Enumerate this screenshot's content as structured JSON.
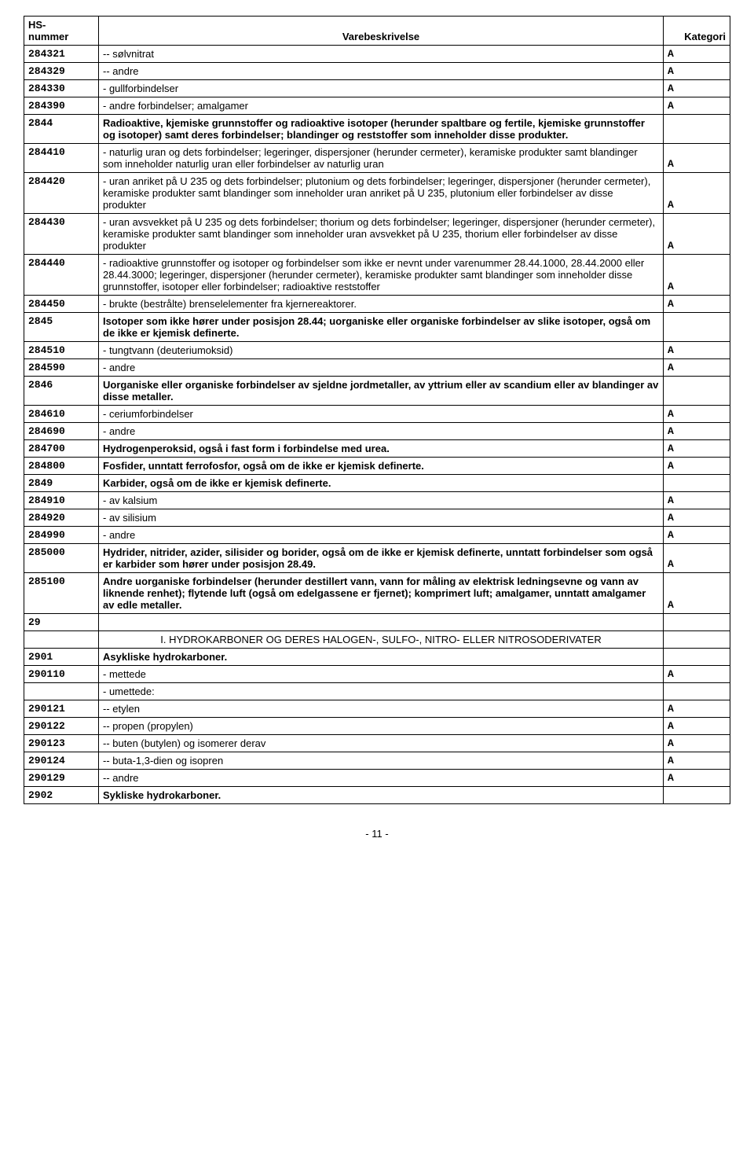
{
  "header": {
    "col1_line1": "HS-",
    "col1_line2": "nummer",
    "col2": "Varebeskrivelse",
    "col3": "Kategori"
  },
  "rows": [
    {
      "code": "284321",
      "desc": "-- sølvnitrat",
      "cat": "A",
      "bold": false
    },
    {
      "code": "284329",
      "desc": "-- andre",
      "cat": "A",
      "bold": false
    },
    {
      "code": "284330",
      "desc": "- gullforbindelser",
      "cat": "A",
      "bold": false
    },
    {
      "code": "284390",
      "desc": "- andre forbindelser; amalgamer",
      "cat": "A",
      "bold": false
    },
    {
      "code": "2844",
      "desc": "Radioaktive, kjemiske grunnstoffer og radioaktive isotoper (herunder spaltbare og fertile, kjemiske grunnstoffer og isotoper) samt deres forbindelser; blandinger og reststoffer som inneholder disse produkter.",
      "cat": "",
      "bold": true
    },
    {
      "code": "284410",
      "desc": "- naturlig uran og dets forbindelser; legeringer, dispersjoner (herunder cermeter), keramiske produkter samt blandinger som inneholder naturlig uran eller forbindelser av naturlig uran",
      "cat": "A",
      "bold": false
    },
    {
      "code": "284420",
      "desc": "- uran anriket på U 235 og dets forbindelser; plutonium og dets forbindelser; legeringer, dispersjoner (herunder cermeter), keramiske produkter samt blandinger som inneholder uran anriket på U 235, plutonium eller forbindelser av disse produkter",
      "cat": "A",
      "bold": false
    },
    {
      "code": "284430",
      "desc": "- uran avsvekket på U 235 og dets forbindelser; thorium og dets forbindelser; legeringer, dispersjoner (herunder cermeter), keramiske produkter samt blandinger som inneholder uran avsvekket på U 235, thorium eller forbindelser av disse produkter",
      "cat": "A",
      "bold": false
    },
    {
      "code": "284440",
      "desc": "- radioaktive grunnstoffer og isotoper og forbindelser som ikke er nevnt under varenummer 28.44.1000, 28.44.2000 eller 28.44.3000; legeringer, dispersjoner (herunder cermeter), keramiske produkter samt blandinger som inneholder disse grunnstoffer, isotoper eller forbindelser; radioaktive reststoffer",
      "cat": "A",
      "bold": false
    },
    {
      "code": "284450",
      "desc": "- brukte (bestrålte) brenselelementer fra kjernereaktorer.",
      "cat": "A",
      "bold": false
    },
    {
      "code": "2845",
      "desc": "Isotoper som ikke hører under posisjon 28.44; uorganiske eller organiske forbindelser av slike isotoper, også om de ikke er kjemisk definerte.",
      "cat": "",
      "bold": true
    },
    {
      "code": "284510",
      "desc": "- tungtvann (deuteriumoksid)",
      "cat": "A",
      "bold": false
    },
    {
      "code": "284590",
      "desc": "- andre",
      "cat": "A",
      "bold": false
    },
    {
      "code": "2846",
      "desc": "Uorganiske eller organiske forbindelser av sjeldne jordmetaller, av yttrium eller av scandium eller av blandinger av disse metaller.",
      "cat": "",
      "bold": true
    },
    {
      "code": "284610",
      "desc": "- ceriumforbindelser",
      "cat": "A",
      "bold": false
    },
    {
      "code": "284690",
      "desc": "- andre",
      "cat": "A",
      "bold": false
    },
    {
      "code": "284700",
      "desc": "Hydrogenperoksid, også i fast form i forbindelse med urea.",
      "cat": "A",
      "bold": true
    },
    {
      "code": "284800",
      "desc": "Fosfider, unntatt ferrofosfor, også om de ikke er kjemisk definerte.",
      "cat": "A",
      "bold": true
    },
    {
      "code": "2849",
      "desc": "Karbider, også om de ikke er kjemisk definerte.",
      "cat": "",
      "bold": true
    },
    {
      "code": "284910",
      "desc": "- av kalsium",
      "cat": "A",
      "bold": false
    },
    {
      "code": "284920",
      "desc": "- av silisium",
      "cat": "A",
      "bold": false
    },
    {
      "code": "284990",
      "desc": "- andre",
      "cat": "A",
      "bold": false
    },
    {
      "code": "285000",
      "desc": "Hydrider, nitrider, azider, silisider og borider, også om de ikke er kjemisk definerte, unntatt forbindelser som også er karbider som hører under posisjon 28.49.",
      "cat": "A",
      "bold": true
    },
    {
      "code": "285100",
      "desc": "Andre uorganiske forbindelser (herunder destillert vann, vann for måling av elektrisk ledningsevne og vann av liknende renhet); flytende luft (også om edelgassene er fjernet); komprimert luft; amalgamer, unntatt amalgamer av edle metaller.",
      "cat": "A",
      "bold": true
    },
    {
      "code": "29",
      "desc": "",
      "cat": "",
      "bold": false
    },
    {
      "code": "",
      "desc": "I. HYDROKARBONER OG DERES HALOGEN-, SULFO-, NITRO- ELLER NITROSODERIVATER",
      "cat": "",
      "bold": false,
      "center": true
    },
    {
      "code": "2901",
      "desc": "Asykliske hydrokarboner.",
      "cat": "",
      "bold": true
    },
    {
      "code": "290110",
      "desc": "- mettede",
      "cat": "A",
      "bold": false
    },
    {
      "code": "",
      "desc": "- umettede:",
      "cat": "",
      "bold": false
    },
    {
      "code": "290121",
      "desc": "-- etylen",
      "cat": "A",
      "bold": false
    },
    {
      "code": "290122",
      "desc": "-- propen (propylen)",
      "cat": "A",
      "bold": false
    },
    {
      "code": "290123",
      "desc": "-- buten (butylen) og isomerer derav",
      "cat": "A",
      "bold": false
    },
    {
      "code": "290124",
      "desc": "-- buta-1,3-dien og isopren",
      "cat": "A",
      "bold": false
    },
    {
      "code": "290129",
      "desc": "-- andre",
      "cat": "A",
      "bold": false
    },
    {
      "code": "2902",
      "desc": "Sykliske hydrokarboner.",
      "cat": "",
      "bold": true
    }
  ],
  "footer": "- 11 -"
}
